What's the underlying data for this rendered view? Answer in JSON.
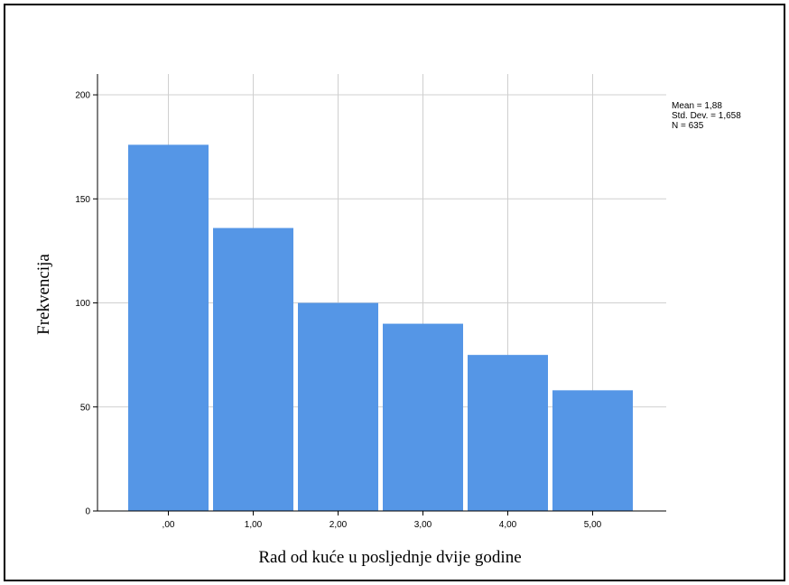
{
  "chart_data": {
    "type": "bar",
    "title": "",
    "xlabel": "Rad od kuće u posljednje dvije godine",
    "ylabel": "Frekvencija",
    "categories": [
      ",00",
      "1,00",
      "2,00",
      "3,00",
      "4,00",
      "5,00"
    ],
    "values": [
      176,
      136,
      100,
      90,
      75,
      58
    ],
    "ylim": [
      0,
      210
    ],
    "yticks": [
      0,
      50,
      100,
      150,
      200
    ],
    "grid": true,
    "bar_color": "#5596e6",
    "stats": [
      "Mean = 1,88",
      "Std. Dev. = 1,658",
      "N = 635"
    ]
  }
}
